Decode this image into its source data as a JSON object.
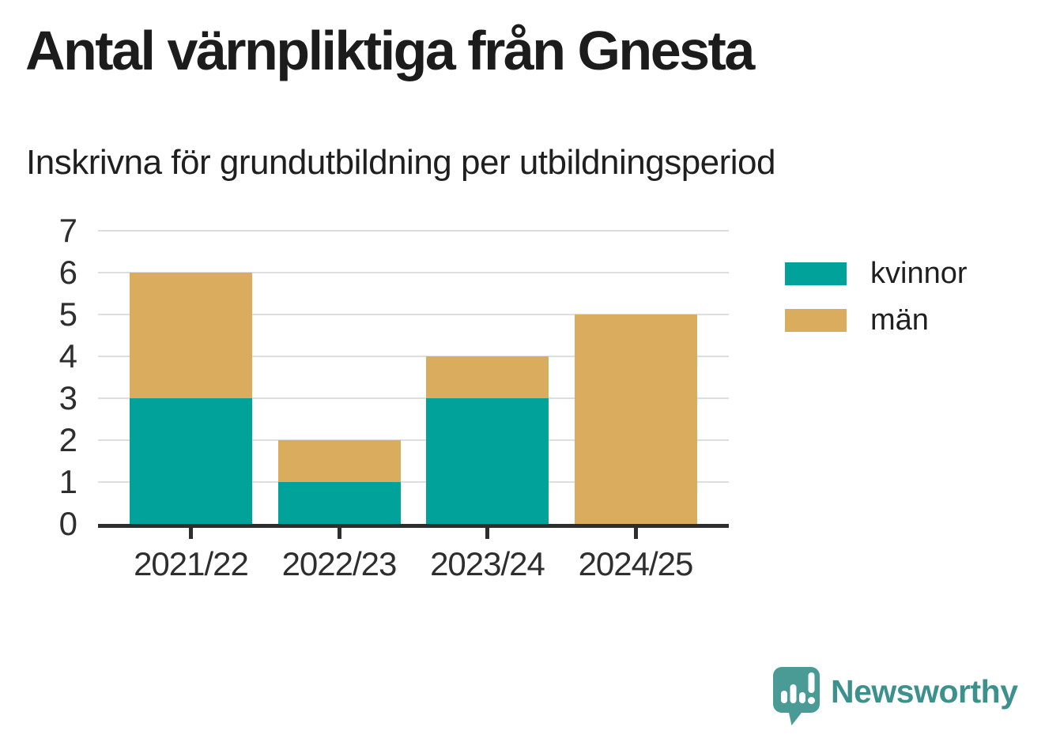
{
  "title": "Antal värnpliktiga från Gnesta",
  "subtitle": "Inskrivna för grundutbildning per utbildningsperiod",
  "branding": {
    "logo_text": "Newsworthy",
    "logo_icon": "newsworthy-speech-bubble-bar-chart-icon",
    "logo_text_color": "#3d918c",
    "logo_icon_color": "#4a9b96"
  },
  "colors": {
    "kvinnor": "#00a29a",
    "man": "#d9ad5d",
    "axis": "#2e2e2e",
    "grid": "#dedede",
    "text": "#1f1f1f"
  },
  "chart_data": {
    "type": "bar",
    "stacked": true,
    "title": "Antal värnpliktiga från Gnesta",
    "subtitle": "Inskrivna för grundutbildning per utbildningsperiod",
    "categories": [
      "2021/22",
      "2022/23",
      "2023/24",
      "2024/25"
    ],
    "series": [
      {
        "name": "kvinnor",
        "color": "#00a29a",
        "values": [
          3,
          1,
          3,
          0
        ]
      },
      {
        "name": "män",
        "color": "#d9ad5d",
        "values": [
          3,
          1,
          1,
          5
        ]
      }
    ],
    "totals": [
      6,
      2,
      4,
      5
    ],
    "xlabel": "",
    "ylabel": "",
    "ylim": [
      0,
      7
    ],
    "yticks": [
      0,
      1,
      2,
      3,
      4,
      5,
      6,
      7
    ],
    "grid": true,
    "legend_position": "right"
  }
}
